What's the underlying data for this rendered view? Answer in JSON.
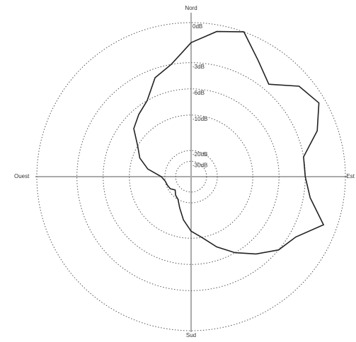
{
  "chart_data": {
    "type": "polar",
    "directions": [
      "Nord",
      "Est",
      "Sud",
      "Ouest"
    ],
    "rticks": [
      {
        "value": 0,
        "label": "0dB"
      },
      {
        "value": -3,
        "label": "-3dB"
      },
      {
        "value": -6,
        "label": "-6dB"
      },
      {
        "value": -10,
        "label": "-10dB"
      },
      {
        "value": -20,
        "label": "-20dB"
      },
      {
        "value": -30,
        "label": "-30dB"
      }
    ],
    "angles": [
      0,
      10,
      20,
      30,
      40,
      50,
      60,
      70,
      80,
      90,
      100,
      110,
      120,
      130,
      140,
      150,
      160,
      170,
      180,
      190,
      200,
      210,
      220,
      230,
      240,
      250,
      260,
      270,
      280,
      290,
      300,
      310,
      320,
      330,
      340,
      350
    ],
    "values": [
      -1.5,
      -0.5,
      0,
      -1.5,
      -2.5,
      -1,
      -0.5,
      -1.5,
      -3,
      -3,
      -2.5,
      -1,
      -2.5,
      -3,
      -4.5,
      -6,
      -8,
      -10,
      -12,
      -15,
      -18,
      -20,
      -22,
      -25,
      -22,
      -21,
      -20,
      -19,
      -15,
      -12,
      -10,
      -8,
      -7,
      -6,
      -4,
      -3
    ],
    "color": "#222222",
    "grid": true
  }
}
